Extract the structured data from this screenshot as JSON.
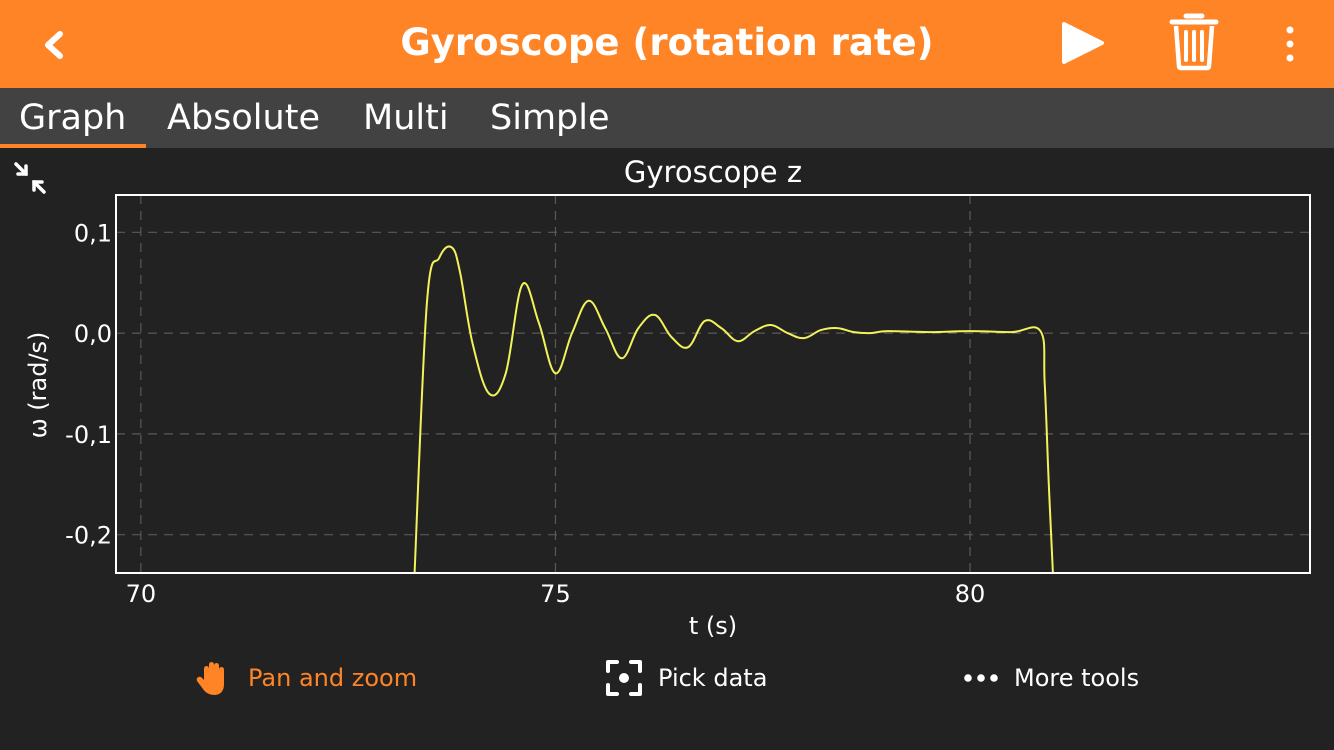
{
  "header": {
    "title": "Gyroscope (rotation rate)",
    "icons": {
      "back": "chevron-left-icon",
      "play": "play-icon",
      "delete": "trash-icon",
      "menu": "more-vertical-icon"
    }
  },
  "tabs": [
    {
      "label": "Graph",
      "active": true
    },
    {
      "label": "Absolute",
      "active": false
    },
    {
      "label": "Multi",
      "active": false
    },
    {
      "label": "Simple",
      "active": false
    }
  ],
  "colors": {
    "accent": "#ff8426",
    "tabbar": "#424242",
    "background": "#222222",
    "trace": "#f2f25a",
    "grid": "#5a5a5a",
    "frame": "#ffffff"
  },
  "chart_data": {
    "type": "line",
    "title": "Gyroscope z",
    "xlabel": "t (s)",
    "ylabel": "ω (rad/s)",
    "xlim": [
      69.7,
      84.1
    ],
    "ylim": [
      -0.238,
      0.137
    ],
    "x_ticks": [
      70,
      75,
      80
    ],
    "x_tick_labels": [
      "70",
      "75",
      "80"
    ],
    "y_ticks": [
      0.1,
      0.0,
      -0.1,
      -0.2
    ],
    "y_tick_labels": [
      "0,1",
      "0,0",
      "-0,1",
      "-0,2"
    ],
    "grid": true,
    "series": [
      {
        "x": [
          73.3,
          73.45,
          73.6,
          73.75,
          73.85,
          74.0,
          74.2,
          74.4,
          74.6,
          74.8,
          75.0,
          75.2,
          75.4,
          75.6,
          75.8,
          76.0,
          76.2,
          76.4,
          76.6,
          76.8,
          77.0,
          77.2,
          77.4,
          77.6,
          77.8,
          78.0,
          78.2,
          78.4,
          78.6,
          78.8,
          79.0,
          79.5,
          80.0,
          80.5,
          80.85,
          80.9,
          80.95,
          81.0
        ],
        "y": [
          -0.24,
          0.03,
          0.075,
          0.085,
          0.06,
          -0.01,
          -0.06,
          -0.04,
          0.048,
          0.01,
          -0.04,
          0.0,
          0.032,
          0.005,
          -0.025,
          0.005,
          0.018,
          -0.004,
          -0.014,
          0.012,
          0.005,
          -0.008,
          0.002,
          0.008,
          0.0,
          -0.005,
          0.003,
          0.005,
          0.001,
          0.0,
          0.002,
          0.001,
          0.002,
          0.001,
          0.002,
          -0.05,
          -0.15,
          -0.24
        ]
      }
    ]
  },
  "toolbar": {
    "pan_label": "Pan and zoom",
    "pick_label": "Pick data",
    "more_label": "More tools",
    "icons": {
      "pan": "hand-icon",
      "pick": "target-frame-icon",
      "more": "more-horizontal-icon",
      "collapse": "collapse-arrows-icon"
    }
  }
}
